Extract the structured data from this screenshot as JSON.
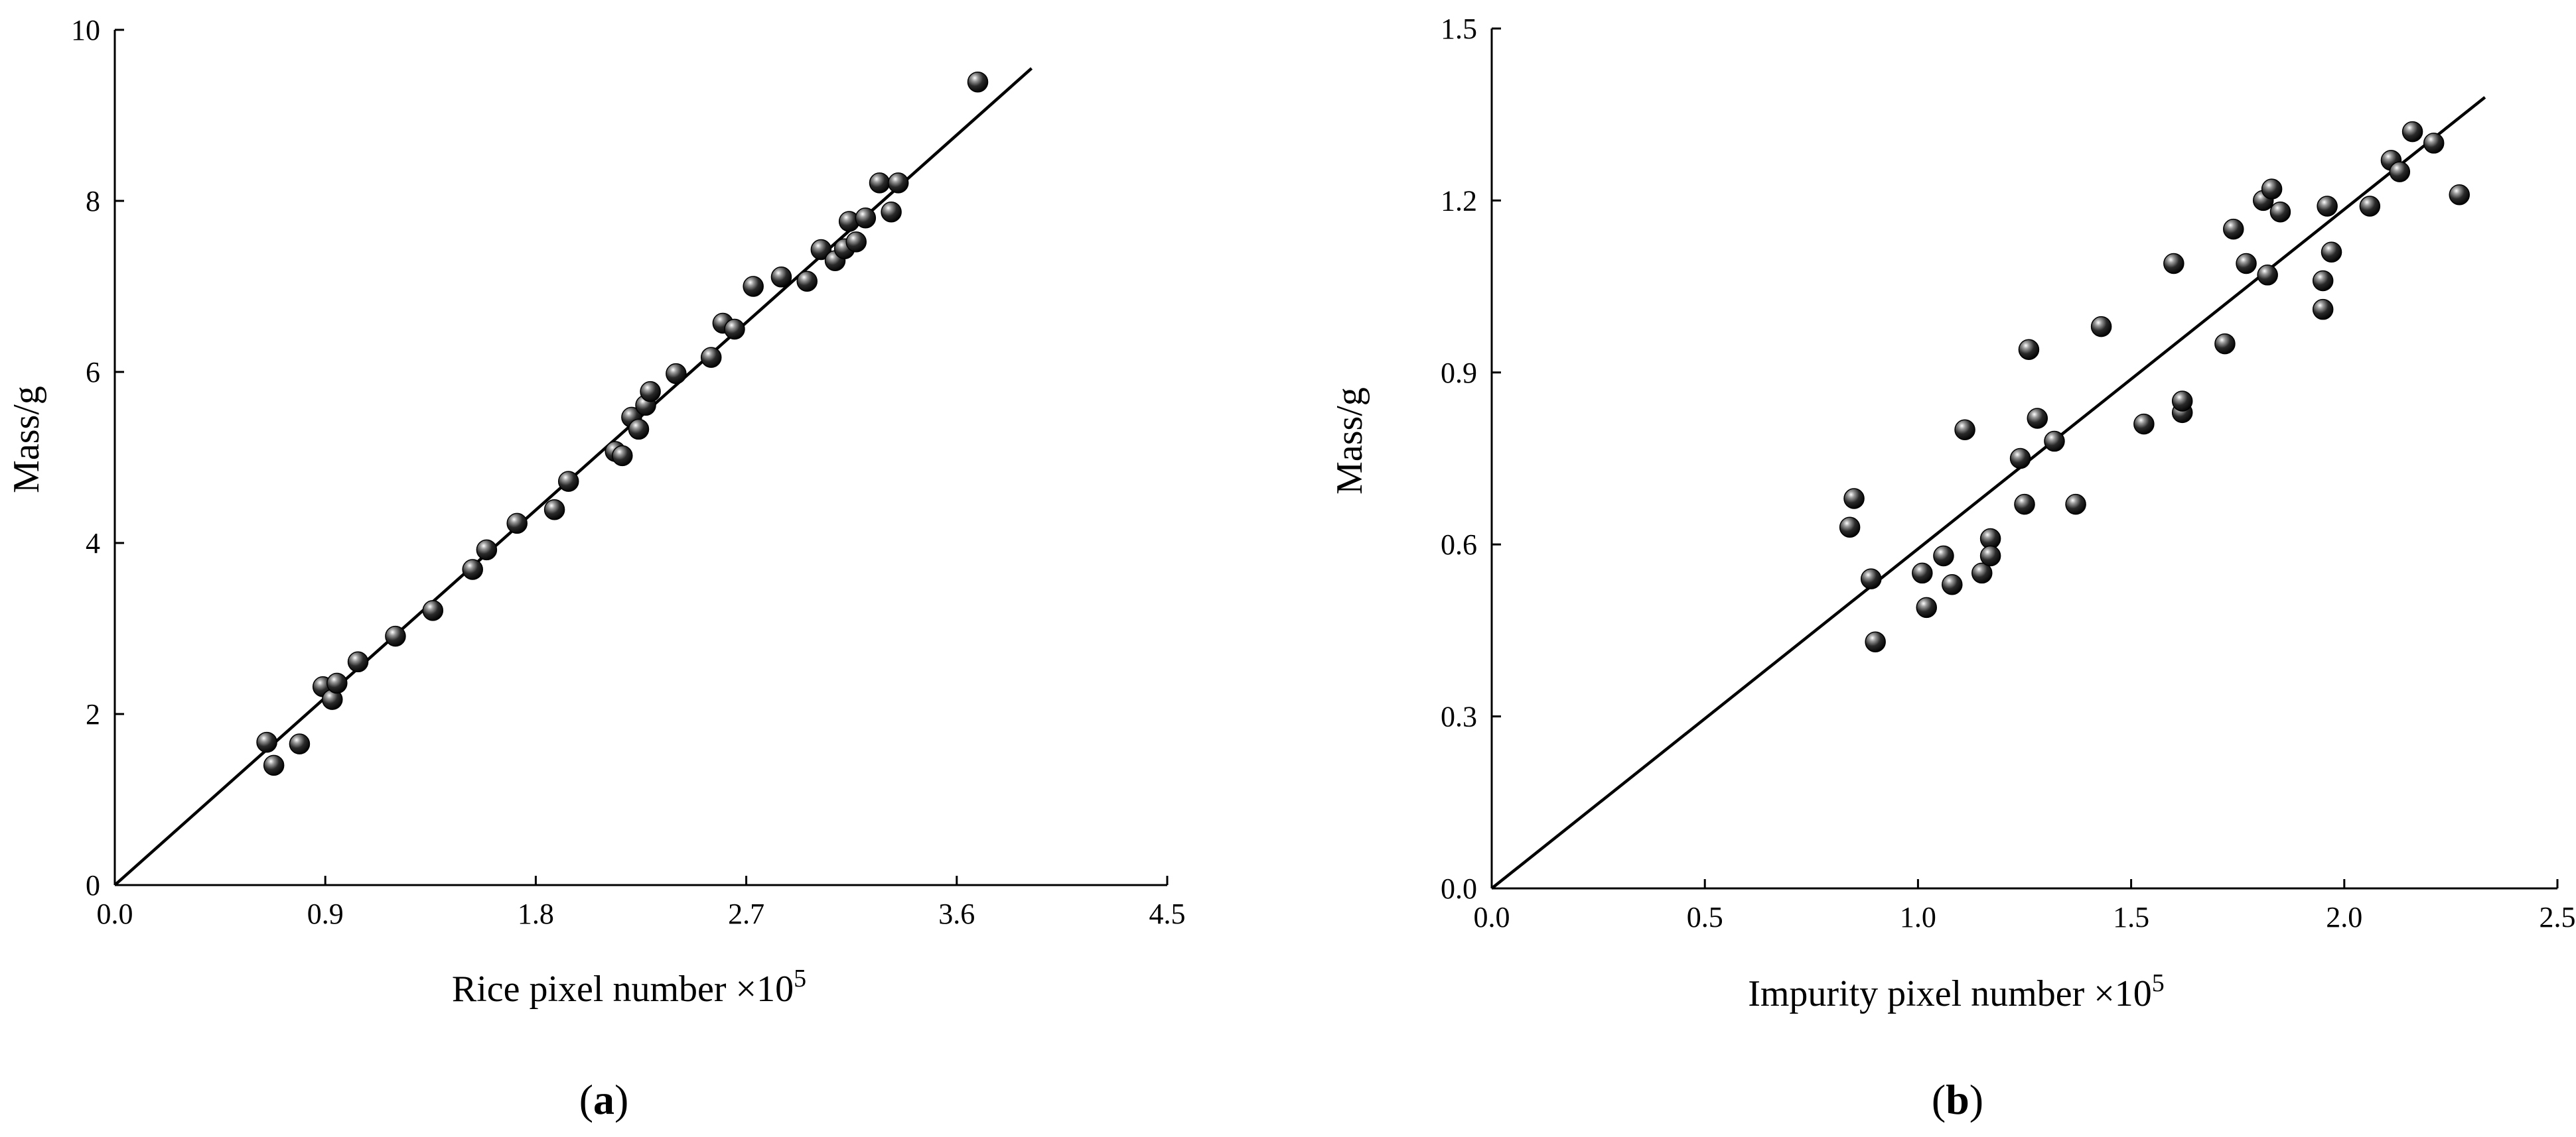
{
  "chart_data": [
    {
      "type": "scatter",
      "panel": "(a)",
      "panel_letter": "a",
      "xlabel": "Rice pixel number ×10",
      "xlabel_exp": "5",
      "ylabel": "Mass/g",
      "xlim": [
        0,
        4.5
      ],
      "ylim": [
        0,
        10
      ],
      "xticks": [
        0.0,
        0.9,
        1.8,
        2.7,
        3.6,
        4.5
      ],
      "xtick_labels": [
        "0.0",
        "0.9",
        "1.8",
        "2.7",
        "3.6",
        "4.5"
      ],
      "yticks": [
        0,
        2,
        4,
        6,
        8,
        10
      ],
      "ytick_labels": [
        "0",
        "2",
        "4",
        "6",
        "8",
        "10"
      ],
      "fit_line": {
        "x": [
          0,
          3.92
        ],
        "y": [
          0,
          9.55
        ]
      },
      "points": [
        [
          0.65,
          1.67
        ],
        [
          0.68,
          1.4
        ],
        [
          0.79,
          1.65
        ],
        [
          0.89,
          2.32
        ],
        [
          0.93,
          2.17
        ],
        [
          0.95,
          2.36
        ],
        [
          1.04,
          2.61
        ],
        [
          1.2,
          2.91
        ],
        [
          1.36,
          3.21
        ],
        [
          1.53,
          3.69
        ],
        [
          1.59,
          3.92
        ],
        [
          1.72,
          4.23
        ],
        [
          1.88,
          4.39
        ],
        [
          1.94,
          4.72
        ],
        [
          2.14,
          5.07
        ],
        [
          2.17,
          5.02
        ],
        [
          2.21,
          5.47
        ],
        [
          2.24,
          5.33
        ],
        [
          2.27,
          5.61
        ],
        [
          2.29,
          5.77
        ],
        [
          2.4,
          5.98
        ],
        [
          2.55,
          6.17
        ],
        [
          2.6,
          6.57
        ],
        [
          2.65,
          6.5
        ],
        [
          2.73,
          7.0
        ],
        [
          2.85,
          7.11
        ],
        [
          2.96,
          7.06
        ],
        [
          3.02,
          7.43
        ],
        [
          3.08,
          7.3
        ],
        [
          3.12,
          7.44
        ],
        [
          3.14,
          7.76
        ],
        [
          3.17,
          7.52
        ],
        [
          3.21,
          7.8
        ],
        [
          3.27,
          8.21
        ],
        [
          3.32,
          7.87
        ],
        [
          3.35,
          8.21
        ],
        [
          3.69,
          9.39
        ]
      ]
    },
    {
      "type": "scatter",
      "panel": "(b)",
      "panel_letter": "b",
      "xlabel": "Impurity pixel number ×10",
      "xlabel_exp": "5",
      "ylabel": "Mass/g",
      "xlim": [
        0,
        2.5
      ],
      "ylim": [
        0,
        1.5
      ],
      "xticks": [
        0.0,
        0.5,
        1.0,
        1.5,
        2.0,
        2.5
      ],
      "xtick_labels": [
        "0.0",
        "0.5",
        "1.0",
        "1.5",
        "2.0",
        "2.5"
      ],
      "yticks": [
        0.0,
        0.3,
        0.6,
        0.9,
        1.2,
        1.5
      ],
      "ytick_labels": [
        "0.0",
        "0.3",
        "0.6",
        "0.9",
        "1.2",
        "1.5"
      ],
      "fit_line": {
        "x": [
          0,
          2.33
        ],
        "y": [
          0,
          1.38
        ]
      },
      "points": [
        [
          0.84,
          0.63
        ],
        [
          0.85,
          0.68
        ],
        [
          0.89,
          0.54
        ],
        [
          0.9,
          0.43
        ],
        [
          1.01,
          0.55
        ],
        [
          1.02,
          0.49
        ],
        [
          1.06,
          0.58
        ],
        [
          1.08,
          0.53
        ],
        [
          1.11,
          0.8
        ],
        [
          1.15,
          0.55
        ],
        [
          1.17,
          0.61
        ],
        [
          1.17,
          0.58
        ],
        [
          1.24,
          0.75
        ],
        [
          1.25,
          0.67
        ],
        [
          1.26,
          0.94
        ],
        [
          1.28,
          0.82
        ],
        [
          1.32,
          0.78
        ],
        [
          1.37,
          0.67
        ],
        [
          1.43,
          0.98
        ],
        [
          1.53,
          0.81
        ],
        [
          1.6,
          1.09
        ],
        [
          1.62,
          0.83
        ],
        [
          1.62,
          0.85
        ],
        [
          1.72,
          0.95
        ],
        [
          1.74,
          1.15
        ],
        [
          1.77,
          1.09
        ],
        [
          1.81,
          1.2
        ],
        [
          1.82,
          1.07
        ],
        [
          1.83,
          1.22
        ],
        [
          1.85,
          1.18
        ],
        [
          1.95,
          1.01
        ],
        [
          1.95,
          1.06
        ],
        [
          1.96,
          1.19
        ],
        [
          1.97,
          1.11
        ],
        [
          2.06,
          1.19
        ],
        [
          2.11,
          1.27
        ],
        [
          2.13,
          1.25
        ],
        [
          2.16,
          1.32
        ],
        [
          2.21,
          1.3
        ],
        [
          2.27,
          1.21
        ]
      ]
    }
  ]
}
